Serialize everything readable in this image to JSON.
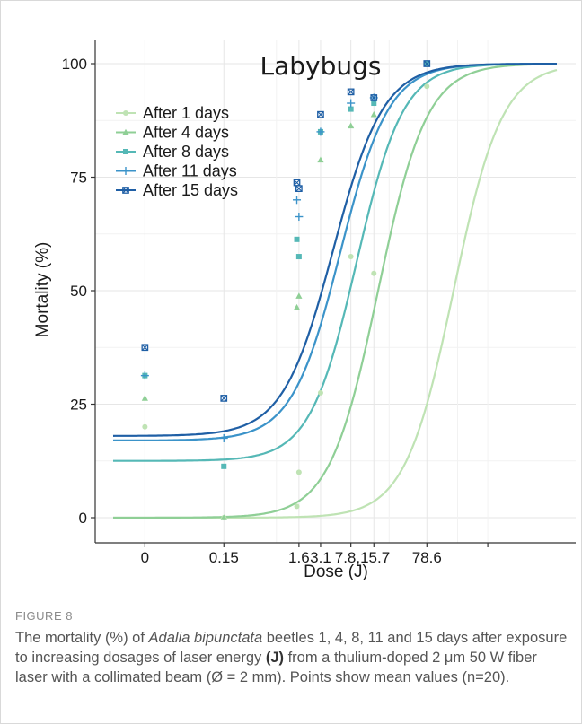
{
  "figure": {
    "label": "FIGURE 8",
    "caption": {
      "part1": "The mortality (%) of ",
      "species": "Adalia bipunctata",
      "part2": " beetles 1, 4, 8, 11 and 15 days after exposure to increasing dosages of laser energy ",
      "unit": "(J)",
      "part3": " from a thulium-doped 2 μm 50 W fiber laser with a collimated beam (Ø = 2 mm). Points show mean values (n=20)."
    }
  },
  "chart_data": {
    "type": "scatter",
    "title": "Labybugs",
    "xlabel": "Dose (J)",
    "ylabel": "Mortality (%)",
    "ylim": [
      0,
      100
    ],
    "x_scale": "log",
    "x_tick_labels": [
      "0",
      "0.15",
      "1.6",
      "3.1",
      "7.8,15.7",
      "78.6"
    ],
    "y_ticks": [
      0,
      25,
      50,
      75,
      100
    ],
    "grid": true,
    "legend_position": "top-left",
    "dose_levels": [
      0,
      0.15,
      1.6,
      3.1,
      7.8,
      15.7,
      78.6
    ],
    "series": [
      {
        "name": "After 1 days",
        "color": "#bfe3b4",
        "marker": "circle",
        "values": [
          20,
          0,
          2.5,
          10,
          27.5,
          57.5,
          53.8,
          95
        ],
        "fit_doses": [
          0,
          0.15,
          1.5,
          1.6,
          3.1,
          7.8,
          15.7,
          78.6
        ]
      },
      {
        "name": "After 4 days",
        "color": "#8fcf96",
        "marker": "triangle",
        "values": [
          26.3,
          0,
          46.3,
          48.8,
          78.8,
          86.3,
          88.8
        ],
        "fit_doses": [
          0,
          0.15,
          1.5,
          1.6,
          3.1,
          7.8,
          15.7
        ]
      },
      {
        "name": "After 8 days",
        "color": "#55b8b6",
        "marker": "square",
        "values": [
          31.3,
          11.3,
          61.3,
          57.5,
          85,
          90,
          91.3,
          100
        ],
        "fit_doses": [
          0,
          0.15,
          1.5,
          1.6,
          3.1,
          7.8,
          15.7,
          78.6
        ]
      },
      {
        "name": "After 11 days",
        "color": "#3b93c9",
        "marker": "plus",
        "values": [
          31.3,
          17.5,
          70,
          66.3,
          85,
          91.3,
          92.5
        ],
        "fit_doses": [
          0,
          0.15,
          1.5,
          1.6,
          3.1,
          7.8,
          15.7
        ]
      },
      {
        "name": "After 15 days",
        "color": "#1f5fa5",
        "marker": "boxcross",
        "values": [
          37.5,
          26.3,
          73.8,
          72.5,
          88.8,
          93.8,
          92.5,
          100
        ],
        "fit_doses": [
          0,
          0.15,
          1.5,
          1.6,
          3.1,
          7.8,
          15.7,
          78.6
        ]
      }
    ]
  }
}
